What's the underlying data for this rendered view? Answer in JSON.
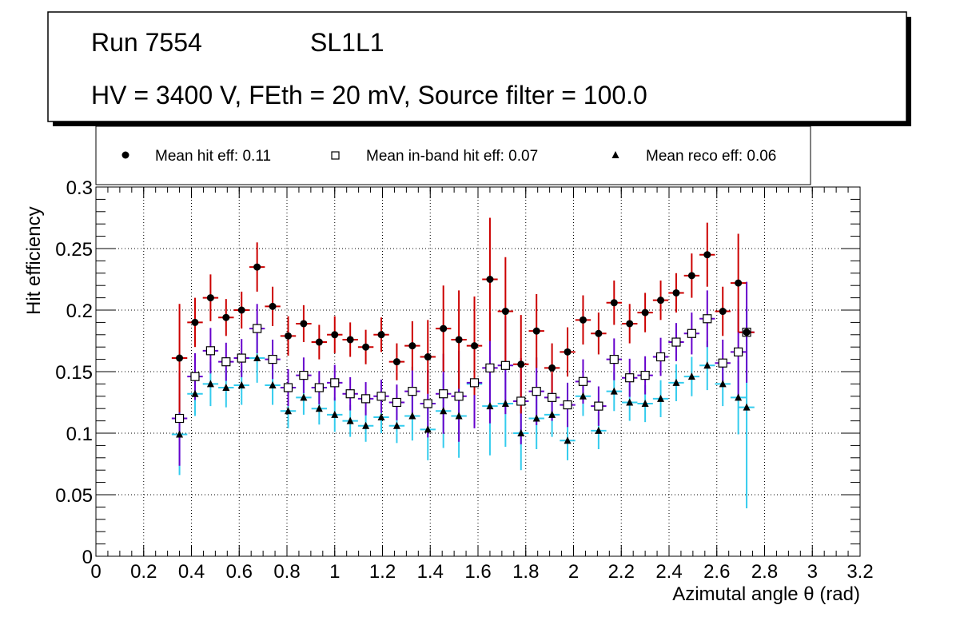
{
  "chart_data": {
    "type": "scatter",
    "title_lines": {
      "run": "Run 7554",
      "layer": "SL1L1",
      "settings": "HV = 3400 V, FEth = 20 mV, Source filter = 100.0"
    },
    "xlabel": "Azimutal angle θ (rad)",
    "ylabel": "Hit efficiency",
    "xlim": [
      0,
      3.2
    ],
    "ylim": [
      0,
      0.3
    ],
    "x_ticks": [
      "0",
      "0.2",
      "0.4",
      "0.6",
      "0.8",
      "1",
      "1.2",
      "1.4",
      "1.6",
      "1.8",
      "2",
      "2.2",
      "2.4",
      "2.6",
      "2.8",
      "3",
      "3.2"
    ],
    "y_ticks": [
      "0",
      "0.05",
      "0.1",
      "0.15",
      "0.2",
      "0.25",
      "0.3"
    ],
    "grid": true,
    "legend_position": "top",
    "bin_half_width": 0.0325,
    "x": [
      0.35,
      0.415,
      0.48,
      0.545,
      0.61,
      0.675,
      0.74,
      0.805,
      0.87,
      0.935,
      1.0,
      1.065,
      1.13,
      1.195,
      1.26,
      1.325,
      1.39,
      1.455,
      1.52,
      1.585,
      1.65,
      1.715,
      1.78,
      1.845,
      1.91,
      1.975,
      2.04,
      2.105,
      2.17,
      2.235,
      2.3,
      2.365,
      2.43,
      2.495,
      2.56,
      2.625,
      2.69,
      2.725
    ],
    "series": [
      {
        "name": "Mean hit  eff: 0.11",
        "marker": "circle",
        "marker_color": "#000000",
        "error_color": "#cc0000",
        "values": [
          0.161,
          0.19,
          0.21,
          0.194,
          0.2,
          0.235,
          0.203,
          0.179,
          0.189,
          0.174,
          0.18,
          0.176,
          0.17,
          0.18,
          0.158,
          0.171,
          0.162,
          0.185,
          0.176,
          0.171,
          0.225,
          0.199,
          0.156,
          0.183,
          0.153,
          0.166,
          0.192,
          0.181,
          0.206,
          0.189,
          0.198,
          0.208,
          0.214,
          0.228,
          0.245,
          0.199,
          0.222,
          0.182
        ],
        "err": [
          0.044,
          0.02,
          0.019,
          0.015,
          0.015,
          0.02,
          0.016,
          0.016,
          0.015,
          0.014,
          0.015,
          0.014,
          0.014,
          0.014,
          0.015,
          0.02,
          0.03,
          0.035,
          0.04,
          0.04,
          0.05,
          0.044,
          0.04,
          0.03,
          0.02,
          0.02,
          0.02,
          0.017,
          0.018,
          0.016,
          0.016,
          0.016,
          0.016,
          0.018,
          0.026,
          0.02,
          0.04,
          0.0
        ]
      },
      {
        "name": "Mean in-band hit eff: 0.07",
        "marker": "open-square",
        "marker_color": "#000000",
        "error_color": "#6600cc",
        "values": [
          0.112,
          0.146,
          0.167,
          0.158,
          0.161,
          0.185,
          0.16,
          0.137,
          0.147,
          0.137,
          0.141,
          0.132,
          0.128,
          0.13,
          0.125,
          0.134,
          0.124,
          0.132,
          0.13,
          0.141,
          0.153,
          0.155,
          0.126,
          0.134,
          0.129,
          0.123,
          0.142,
          0.122,
          0.16,
          0.145,
          0.147,
          0.162,
          0.174,
          0.181,
          0.193,
          0.157,
          0.166,
          0.182
        ]
      },
      {
        "name": "Mean reco eff: 0.06",
        "marker": "triangle",
        "marker_color": "#000000",
        "error_color": "#33ccee",
        "values": [
          0.099,
          0.132,
          0.14,
          0.137,
          0.139,
          0.161,
          0.139,
          0.118,
          0.129,
          0.12,
          0.115,
          0.11,
          0.106,
          0.113,
          0.106,
          0.114,
          0.103,
          0.118,
          0.114,
          0.14,
          0.122,
          0.124,
          0.1,
          0.112,
          0.115,
          0.094,
          0.13,
          0.102,
          0.134,
          0.125,
          0.124,
          0.128,
          0.141,
          0.146,
          0.155,
          0.14,
          0.129,
          0.121
        ],
        "err": [
          0.033,
          0.018,
          0.018,
          0.016,
          0.016,
          0.02,
          0.016,
          0.014,
          0.014,
          0.013,
          0.014,
          0.013,
          0.013,
          0.013,
          0.014,
          0.02,
          0.025,
          0.03,
          0.034,
          0.034,
          0.04,
          0.035,
          0.03,
          0.025,
          0.018,
          0.016,
          0.016,
          0.015,
          0.016,
          0.015,
          0.015,
          0.015,
          0.015,
          0.016,
          0.02,
          0.018,
          0.03,
          0.082
        ]
      }
    ]
  }
}
